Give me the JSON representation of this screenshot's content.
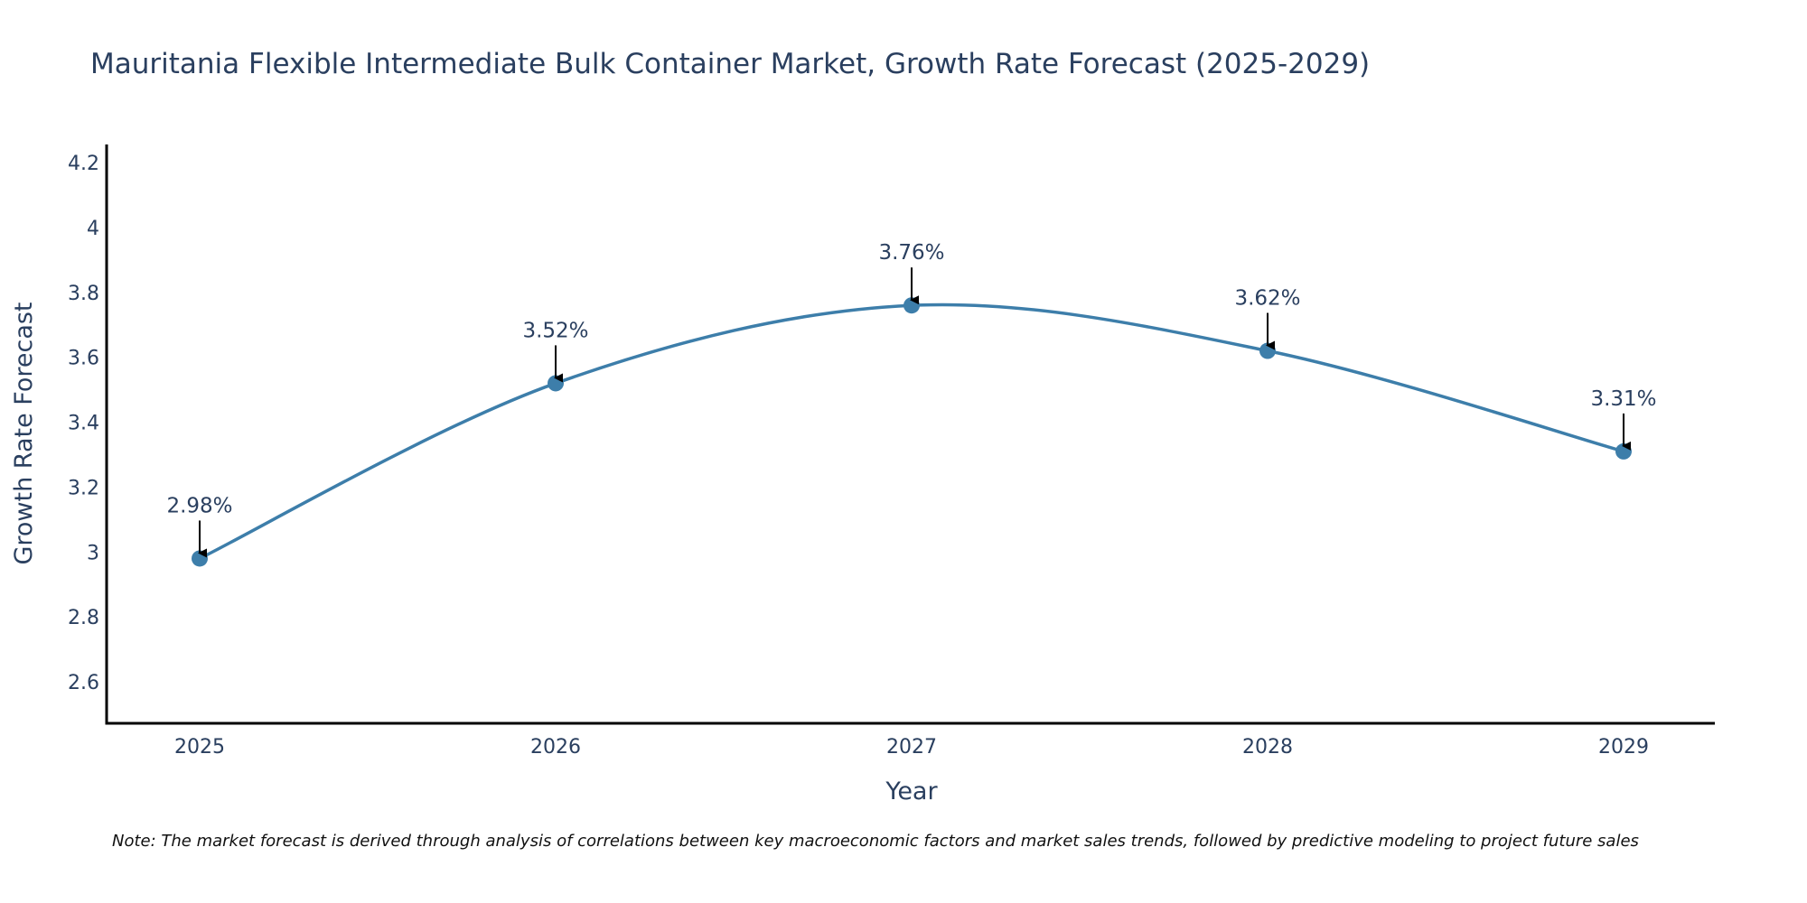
{
  "chart_data": {
    "type": "line",
    "title": "Mauritania Flexible Intermediate Bulk Container Market, Growth Rate Forecast (2025-2029)",
    "xlabel": "Year",
    "ylabel": "Growth Rate Forecast",
    "categories": [
      "2025",
      "2026",
      "2027",
      "2028",
      "2029"
    ],
    "series": [
      {
        "name": "Growth Rate Forecast",
        "values": [
          2.98,
          3.52,
          3.76,
          3.62,
          3.31
        ],
        "color": "#3d7eaa"
      }
    ],
    "annotations": [
      "2.98%",
      "3.52%",
      "3.76%",
      "3.62%",
      "3.31%"
    ],
    "yticks": [
      2.6,
      2.8,
      3,
      3.2,
      3.4,
      3.6,
      3.8,
      4,
      4.2
    ],
    "ytick_labels": [
      "2.6",
      "2.8",
      "3",
      "3.2",
      "3.4",
      "3.6",
      "3.8",
      "4",
      "4.2"
    ],
    "ylim": [
      2.472,
      4.256
    ],
    "grid": false,
    "line_shape": "spline",
    "legend": "none"
  },
  "note": "Note: The market forecast is derived through analysis of correlations between key macroeconomic factors and market sales trends, followed by predictive modeling to project future sales"
}
